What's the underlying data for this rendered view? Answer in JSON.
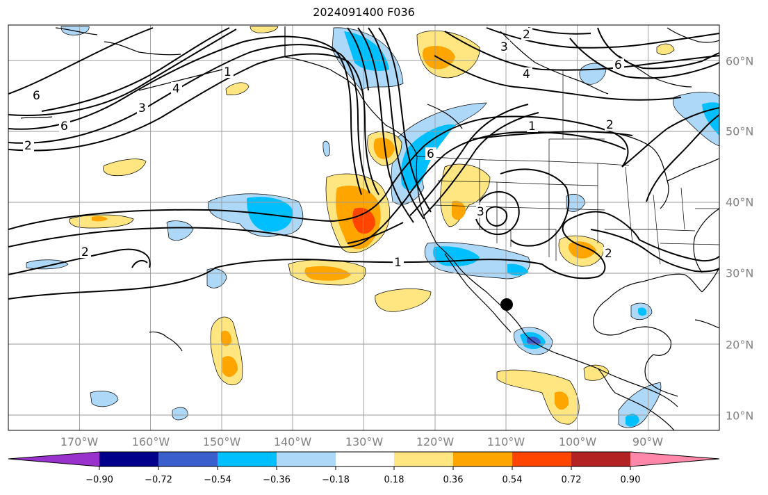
{
  "title": "2024091400 F036",
  "lon_labels": [
    "170°W",
    "160°W",
    "150°W",
    "140°W",
    "130°W",
    "120°W",
    "110°W",
    "100°W",
    "90°W"
  ],
  "lat_labels": [
    "60°N",
    "50°N",
    "40°N",
    "30°N",
    "20°N",
    "10°N"
  ],
  "contour_labels": [
    "1",
    "2",
    "3",
    "4",
    "6"
  ],
  "colorbar": {
    "ticks": [
      "−0.90",
      "−0.72",
      "−0.54",
      "−0.36",
      "−0.18",
      "0.18",
      "0.36",
      "0.54",
      "0.72",
      "0.90"
    ],
    "colors": [
      "#9932cc",
      "#00008b",
      "#3a5fcd",
      "#00bfff",
      "#add8f8",
      "#ffffff",
      "#ffe680",
      "#ffa500",
      "#ff4500",
      "#b22222",
      "#ff88aa"
    ]
  }
}
